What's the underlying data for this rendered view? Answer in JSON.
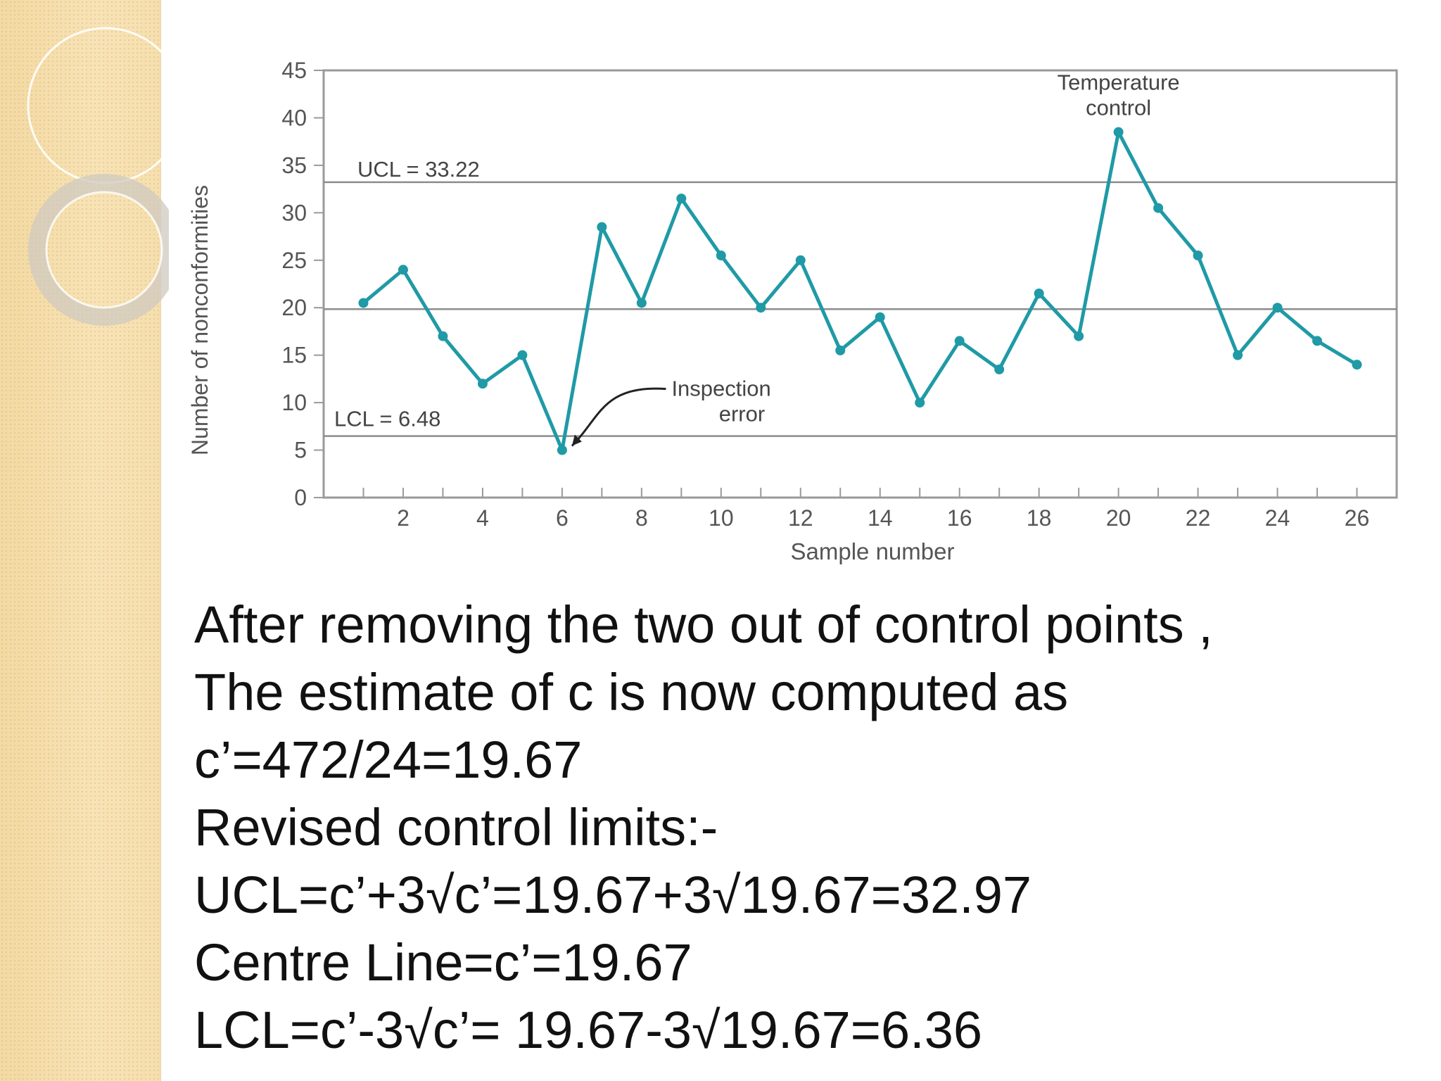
{
  "chart_data": {
    "type": "line",
    "title": "",
    "xlabel": "Sample number",
    "ylabel": "Number of nonconformities",
    "xlim": [
      0,
      27
    ],
    "ylim": [
      0,
      45
    ],
    "x_ticks": [
      2,
      4,
      6,
      8,
      10,
      12,
      14,
      16,
      18,
      20,
      22,
      24,
      26
    ],
    "y_ticks": [
      0,
      5,
      10,
      15,
      20,
      25,
      30,
      35,
      40,
      45
    ],
    "grid": false,
    "series": [
      {
        "name": "",
        "color": "#1f9aa6",
        "x": [
          1,
          2,
          3,
          4,
          5,
          6,
          7,
          8,
          9,
          10,
          11,
          12,
          13,
          14,
          15,
          16,
          17,
          18,
          19,
          20,
          21,
          22,
          23,
          24,
          25,
          26
        ],
        "y": [
          20.5,
          24,
          17,
          12,
          15,
          5,
          28.5,
          20.5,
          31.5,
          25.5,
          20,
          25,
          15.5,
          19,
          10,
          16.5,
          13.5,
          21.5,
          17,
          38.5,
          30.5,
          25.5,
          15,
          20,
          16.5,
          14
        ]
      }
    ],
    "reference_lines": [
      {
        "label": "UCL = 33.22",
        "value": 33.22
      },
      {
        "label": "",
        "value": 19.85
      },
      {
        "label": "LCL = 6.48",
        "value": 6.48
      }
    ],
    "annotations": [
      {
        "lines": [
          "Temperature",
          "control"
        ],
        "x": 20,
        "y": 38.5
      },
      {
        "lines": [
          "Inspection",
          "error"
        ],
        "x": 6,
        "y": 5
      }
    ]
  },
  "text": {
    "lines": [
      "After removing the two out of control points ,",
      "The estimate of c is now computed as",
      "c’=472/24=19.67",
      "Revised control limits:-",
      "UCL=c’+3√c’=19.67+3√19.67=32.97",
      "Centre Line=c’=19.67",
      "LCL=c’-3√c’= 19.67-3√19.67=6.36"
    ]
  },
  "colors": {
    "series": "#1f9aa6",
    "limit_lines": "#8c8c8c",
    "frame": "#9a9a9a",
    "axis_text": "#555555",
    "sidebar": "#f5dca8"
  }
}
